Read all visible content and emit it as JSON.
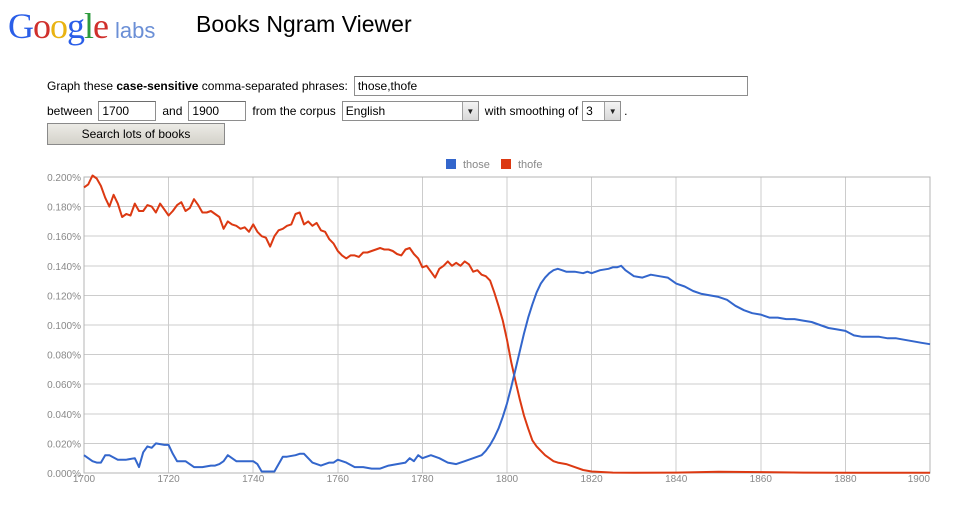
{
  "header": {
    "logo_letters": [
      {
        "ch": "G",
        "color": "blue"
      },
      {
        "ch": "o",
        "color": "red"
      },
      {
        "ch": "o",
        "color": "yellow"
      },
      {
        "ch": "g",
        "color": "blue"
      },
      {
        "ch": "l",
        "color": "green"
      },
      {
        "ch": "e",
        "color": "red"
      }
    ],
    "logo_suffix": "labs",
    "app_title": "Books Ngram Viewer"
  },
  "form": {
    "graph_prefix": "Graph these ",
    "graph_bold": "case-sensitive",
    "graph_suffix": " comma-separated phrases:",
    "phrases_value": "those,thofe",
    "between_label": "between",
    "start_year": "1700",
    "and_label": "and",
    "end_year": "1900",
    "corpus_label": "from the corpus",
    "corpus_value": "English",
    "smoothing_label": "with smoothing of",
    "smoothing_value": "3",
    "period": ".",
    "search_button": "Search lots of books"
  },
  "colors": {
    "those": "#3366cc",
    "thofe": "#dc3912",
    "grid": "#cccccc",
    "axis_text": "#888888"
  },
  "chart_data": {
    "type": "line",
    "x_range": [
      1700,
      1900
    ],
    "ylim": [
      0,
      0.2
    ],
    "y_unit": "%",
    "x_ticks": [
      1700,
      1720,
      1740,
      1760,
      1780,
      1800,
      1820,
      1840,
      1860,
      1880,
      1900
    ],
    "x_tick_labels": [
      "1700",
      "1720",
      "1740",
      "1760",
      "1780",
      "1800",
      "1820",
      "1840",
      "1860",
      "1880",
      "1900"
    ],
    "y_ticks": [
      0,
      0.02,
      0.04,
      0.06,
      0.08,
      0.1,
      0.12,
      0.14,
      0.16,
      0.18,
      0.2
    ],
    "y_tick_labels": [
      "0.000%",
      "0.020%",
      "0.040%",
      "0.060%",
      "0.080%",
      "0.100%",
      "0.120%",
      "0.140%",
      "0.160%",
      "0.180%",
      "0.200%"
    ],
    "grid": true,
    "legend_position": "top",
    "series": [
      {
        "name": "those",
        "x": [
          1700,
          1702,
          1703,
          1704,
          1705,
          1706,
          1708,
          1710,
          1712,
          1713,
          1714,
          1715,
          1716,
          1717,
          1719,
          1720,
          1721,
          1722,
          1724,
          1726,
          1728,
          1730,
          1731,
          1732,
          1733,
          1734,
          1736,
          1738,
          1740,
          1741,
          1742,
          1744,
          1745,
          1747,
          1748,
          1750,
          1751,
          1752,
          1754,
          1756,
          1758,
          1759,
          1760,
          1762,
          1764,
          1766,
          1768,
          1770,
          1771,
          1772,
          1774,
          1776,
          1777,
          1778,
          1779,
          1780,
          1782,
          1784,
          1786,
          1788,
          1790,
          1792,
          1794,
          1795,
          1796,
          1797,
          1798,
          1799,
          1800,
          1801,
          1802,
          1803,
          1804,
          1805,
          1806,
          1807,
          1808,
          1809,
          1810,
          1811,
          1812,
          1813,
          1814,
          1816,
          1818,
          1819,
          1820,
          1822,
          1824,
          1825,
          1826,
          1827,
          1828,
          1830,
          1832,
          1834,
          1836,
          1838,
          1840,
          1842,
          1844,
          1846,
          1848,
          1850,
          1852,
          1854,
          1856,
          1858,
          1860,
          1862,
          1864,
          1866,
          1868,
          1870,
          1872,
          1874,
          1876,
          1878,
          1880,
          1882,
          1884,
          1886,
          1888,
          1890,
          1892,
          1894,
          1896,
          1898,
          1900
        ],
        "y": [
          0.012,
          0.008,
          0.007,
          0.007,
          0.012,
          0.012,
          0.009,
          0.009,
          0.01,
          0.004,
          0.014,
          0.018,
          0.017,
          0.02,
          0.019,
          0.019,
          0.013,
          0.008,
          0.008,
          0.004,
          0.004,
          0.005,
          0.005,
          0.006,
          0.008,
          0.012,
          0.008,
          0.008,
          0.008,
          0.006,
          0.001,
          0.001,
          0.001,
          0.011,
          0.011,
          0.012,
          0.013,
          0.013,
          0.007,
          0.005,
          0.007,
          0.007,
          0.009,
          0.007,
          0.004,
          0.004,
          0.003,
          0.003,
          0.004,
          0.005,
          0.006,
          0.007,
          0.01,
          0.008,
          0.012,
          0.01,
          0.012,
          0.01,
          0.007,
          0.006,
          0.008,
          0.01,
          0.012,
          0.015,
          0.019,
          0.024,
          0.03,
          0.038,
          0.047,
          0.058,
          0.07,
          0.082,
          0.094,
          0.105,
          0.114,
          0.122,
          0.128,
          0.132,
          0.135,
          0.137,
          0.138,
          0.137,
          0.136,
          0.136,
          0.135,
          0.136,
          0.135,
          0.137,
          0.138,
          0.139,
          0.139,
          0.14,
          0.137,
          0.133,
          0.132,
          0.134,
          0.133,
          0.132,
          0.128,
          0.126,
          0.123,
          0.121,
          0.12,
          0.119,
          0.117,
          0.113,
          0.11,
          0.108,
          0.107,
          0.105,
          0.105,
          0.104,
          0.104,
          0.103,
          0.102,
          0.1,
          0.098,
          0.097,
          0.096,
          0.093,
          0.092,
          0.092,
          0.092,
          0.091,
          0.091,
          0.09,
          0.089,
          0.088,
          0.087
        ]
      },
      {
        "name": "thofe",
        "x": [
          1700,
          1701,
          1702,
          1703,
          1704,
          1705,
          1706,
          1707,
          1708,
          1709,
          1710,
          1711,
          1712,
          1713,
          1714,
          1715,
          1716,
          1717,
          1718,
          1719,
          1720,
          1721,
          1722,
          1723,
          1724,
          1725,
          1726,
          1727,
          1728,
          1729,
          1730,
          1731,
          1732,
          1733,
          1734,
          1735,
          1736,
          1737,
          1738,
          1739,
          1740,
          1741,
          1742,
          1743,
          1744,
          1745,
          1746,
          1747,
          1748,
          1749,
          1750,
          1751,
          1752,
          1753,
          1754,
          1755,
          1756,
          1757,
          1758,
          1759,
          1760,
          1761,
          1762,
          1763,
          1764,
          1765,
          1766,
          1767,
          1768,
          1769,
          1770,
          1771,
          1772,
          1773,
          1774,
          1775,
          1776,
          1777,
          1778,
          1779,
          1780,
          1781,
          1782,
          1783,
          1784,
          1785,
          1786,
          1787,
          1788,
          1789,
          1790,
          1791,
          1792,
          1793,
          1794,
          1795,
          1796,
          1797,
          1798,
          1799,
          1800,
          1801,
          1802,
          1803,
          1804,
          1805,
          1806,
          1807,
          1808,
          1809,
          1810,
          1811,
          1812,
          1814,
          1816,
          1818,
          1820,
          1825,
          1830,
          1840,
          1850,
          1860,
          1870,
          1880,
          1890,
          1900
        ],
        "y": [
          0.193,
          0.195,
          0.201,
          0.199,
          0.194,
          0.186,
          0.18,
          0.188,
          0.182,
          0.173,
          0.175,
          0.174,
          0.182,
          0.177,
          0.177,
          0.181,
          0.18,
          0.176,
          0.182,
          0.178,
          0.174,
          0.177,
          0.181,
          0.183,
          0.177,
          0.179,
          0.185,
          0.181,
          0.176,
          0.176,
          0.177,
          0.175,
          0.173,
          0.165,
          0.17,
          0.168,
          0.167,
          0.165,
          0.166,
          0.163,
          0.168,
          0.163,
          0.16,
          0.159,
          0.153,
          0.16,
          0.164,
          0.165,
          0.167,
          0.168,
          0.175,
          0.176,
          0.168,
          0.17,
          0.167,
          0.169,
          0.164,
          0.163,
          0.158,
          0.155,
          0.15,
          0.147,
          0.145,
          0.147,
          0.147,
          0.146,
          0.149,
          0.149,
          0.15,
          0.151,
          0.152,
          0.151,
          0.151,
          0.15,
          0.148,
          0.147,
          0.151,
          0.152,
          0.148,
          0.145,
          0.139,
          0.14,
          0.136,
          0.132,
          0.138,
          0.14,
          0.143,
          0.14,
          0.142,
          0.14,
          0.143,
          0.141,
          0.136,
          0.137,
          0.134,
          0.133,
          0.13,
          0.122,
          0.113,
          0.103,
          0.09,
          0.075,
          0.062,
          0.05,
          0.039,
          0.03,
          0.022,
          0.018,
          0.015,
          0.012,
          0.01,
          0.008,
          0.007,
          0.006,
          0.004,
          0.002,
          0.001,
          0.0003,
          0.0002,
          0.0003,
          0.0008,
          0.0006,
          0.0003,
          0.0002,
          0.0002,
          0.0002
        ]
      }
    ]
  }
}
